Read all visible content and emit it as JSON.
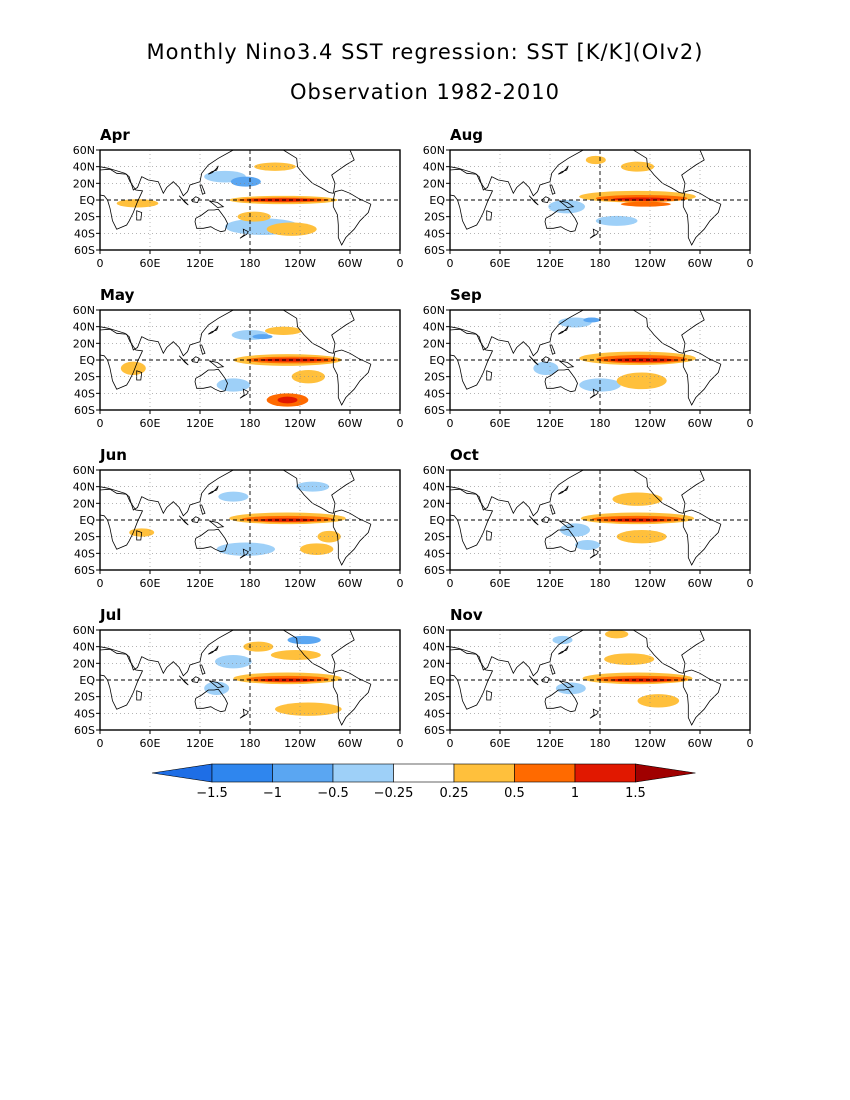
{
  "title": "Monthly Nino3.4 SST regression: SST [K/K](OIv2)",
  "subtitle": "Observation 1982-2010",
  "colors": {
    "neg4": "#1e6ee6",
    "neg3": "#2f86ee",
    "neg2": "#5aa6f2",
    "neg1": "#9ed0f8",
    "pos1": "#ffc03c",
    "pos2": "#ff6a00",
    "pos3": "#e11800",
    "pos4": "#a00000"
  },
  "axes": {
    "lat_ticks": [
      "60N",
      "40N",
      "20N",
      "EQ",
      "20S",
      "40S",
      "60S"
    ],
    "lon_ticks": [
      "0",
      "60E",
      "120E",
      "180",
      "120W",
      "60W",
      "0"
    ]
  },
  "panels": [
    {
      "month": "Apr"
    },
    {
      "month": "Aug"
    },
    {
      "month": "May"
    },
    {
      "month": "Sep"
    },
    {
      "month": "Jun"
    },
    {
      "month": "Oct"
    },
    {
      "month": "Jul"
    },
    {
      "month": "Nov"
    }
  ],
  "chart_data": {
    "type": "heatmap",
    "title": "Monthly Nino3.4 SST regression: SST [K/K](OIv2)",
    "subtitle": "Observation 1982-2010",
    "units": "K/K",
    "xlim": [
      0,
      360
    ],
    "ylim": [
      -60,
      60
    ],
    "panels": [
      "Apr",
      "May",
      "Jun",
      "Jul",
      "Aug",
      "Sep",
      "Oct",
      "Nov"
    ],
    "colorbar_levels": [
      -1.5,
      -1,
      -0.5,
      -0.25,
      0.25,
      0.5,
      1,
      1.5
    ],
    "colorbar_labels": [
      "-1.5",
      "-1",
      "-0.5",
      "-0.25",
      "0.25",
      "0.5",
      "1",
      "1.5"
    ]
  }
}
